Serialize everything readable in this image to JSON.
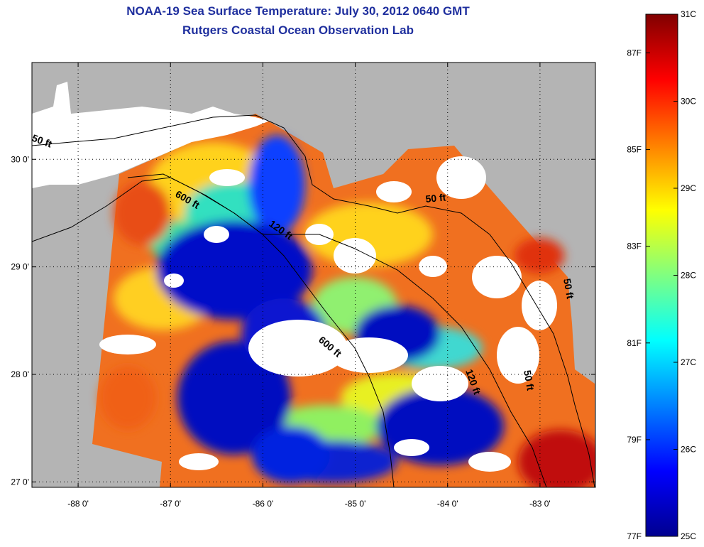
{
  "title": "NOAA-19 Sea Surface Temperature:  July 30, 2012 0640 GMT",
  "subtitle": "Rutgers Coastal Ocean Observation Lab",
  "map": {
    "lon_range": [
      -88.5,
      -82.4
    ],
    "lat_range": [
      26.95,
      30.9
    ],
    "lon_ticks": [
      {
        "value": -88,
        "label": "-88 0'"
      },
      {
        "value": -87,
        "label": "-87 0'"
      },
      {
        "value": -86,
        "label": "-86 0'"
      },
      {
        "value": -85,
        "label": "-85 0'"
      },
      {
        "value": -84,
        "label": "-84 0'"
      },
      {
        "value": -83,
        "label": "-83 0'"
      }
    ],
    "lat_ticks": [
      {
        "value": 30,
        "label": "30 0'"
      },
      {
        "value": 29,
        "label": "29 0'"
      },
      {
        "value": 28,
        "label": "28 0'"
      },
      {
        "value": 27,
        "label": "27 0'"
      }
    ],
    "contour_labels": [
      "50 ft",
      "600 ft",
      "120 ft",
      "50 ft",
      "600 ft",
      "120 ft",
      "50 ft",
      "50 ft"
    ],
    "land_color": "#b4b4b4",
    "cloud_color": "#ffffff"
  },
  "colorbar": {
    "celsius": [
      {
        "value": 31,
        "label": "31C"
      },
      {
        "value": 30,
        "label": "30C"
      },
      {
        "value": 29,
        "label": "29C"
      },
      {
        "value": 28,
        "label": "28C"
      },
      {
        "value": 27,
        "label": "27C"
      },
      {
        "value": 26,
        "label": "26C"
      },
      {
        "value": 25,
        "label": "25C"
      }
    ],
    "fahrenheit": [
      {
        "value": 87,
        "label": "87F"
      },
      {
        "value": 85,
        "label": "85F"
      },
      {
        "value": 83,
        "label": "83F"
      },
      {
        "value": 81,
        "label": "81F"
      },
      {
        "value": 79,
        "label": "79F"
      },
      {
        "value": 77,
        "label": "77F"
      }
    ],
    "colormap": [
      "#00008f",
      "#0000ff",
      "#0080ff",
      "#00ffff",
      "#80ff80",
      "#ffff00",
      "#ff8000",
      "#ff0000",
      "#800000"
    ]
  }
}
